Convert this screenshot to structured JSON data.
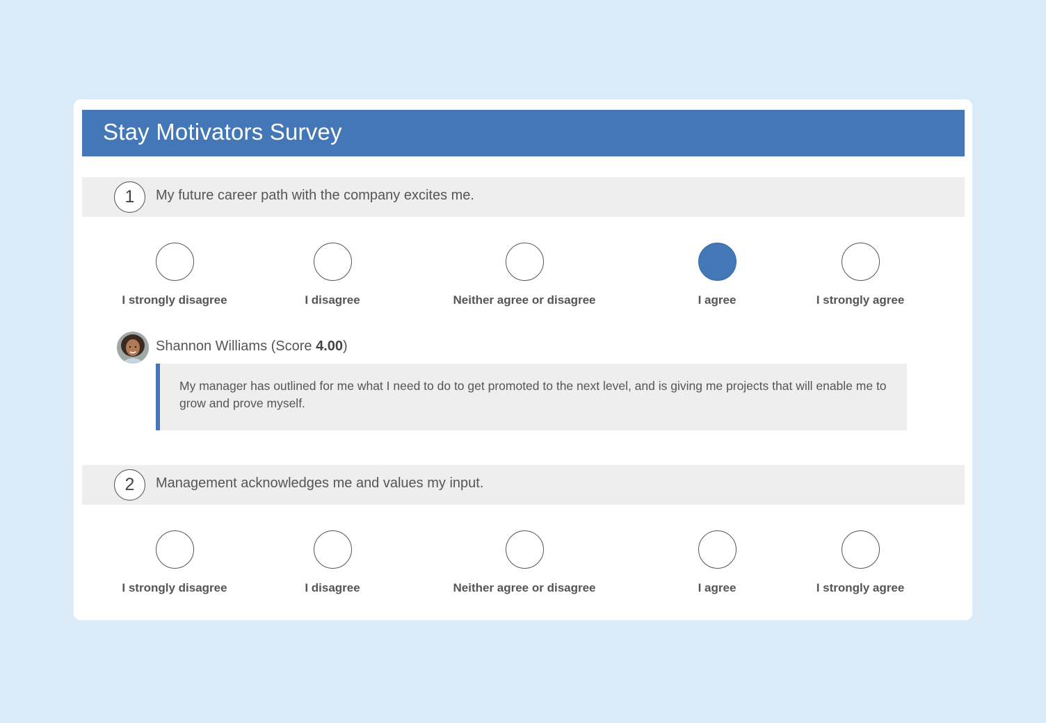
{
  "survey": {
    "title": "Stay Motivators Survey"
  },
  "questions": [
    {
      "number": "1",
      "text": "My future career path with the company excites me.",
      "options": [
        "I strongly disagree",
        "I disagree",
        "Neither agree or disagree",
        "I agree",
        "I strongly agree"
      ],
      "selected_option": "I agree",
      "response": {
        "name": "Shannon Williams",
        "score_prefix": " (Score ",
        "score": "4.00",
        "score_suffix": ")",
        "comment": "My manager has outlined for me what I need to do to get promoted to the next level, and is giving me projects that will enable me to grow and prove myself."
      }
    },
    {
      "number": "2",
      "text": "Management acknowledges me and values my input.",
      "options": [
        "I strongly disagree",
        "I disagree",
        "Neither agree or disagree",
        "I agree",
        "I strongly agree"
      ],
      "selected_option": ""
    }
  ],
  "colors": {
    "background": "#dbebf8",
    "header": "#4477b8",
    "question_bar": "#eeeeee",
    "selected_radio": "#4477b8"
  }
}
